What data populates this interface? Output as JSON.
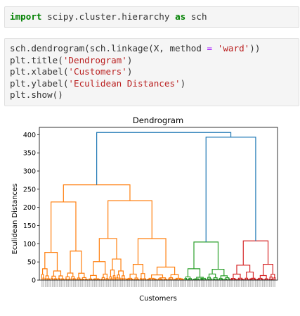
{
  "cells": {
    "import": {
      "kw_import": "import",
      "module": " scipy.cluster.hierarchy ",
      "kw_as": "as",
      "alias": " sch"
    },
    "code": [
      {
        "pre": "sch.dendrogram(sch.linkage(X, method ",
        "op": "=",
        "mid": " ",
        "str": "'ward'",
        "post": "))"
      },
      {
        "pre": "plt.title(",
        "op": "",
        "mid": "",
        "str": "'Dendrogram'",
        "post": ")"
      },
      {
        "pre": "plt.xlabel(",
        "op": "",
        "mid": "",
        "str": "'Customers'",
        "post": ")"
      },
      {
        "pre": "plt.ylabel(",
        "op": "",
        "mid": "",
        "str": "'Eculidean Distances'",
        "post": ")"
      },
      {
        "pre": "plt.show()",
        "op": "",
        "mid": "",
        "str": "",
        "post": ""
      }
    ]
  },
  "chart_data": {
    "type": "dendrogram",
    "title": "Dendrogram",
    "xlabel": "Customers",
    "ylabel": "Eculidean Distances",
    "ylim": [
      0,
      420
    ],
    "yticks": [
      0,
      50,
      100,
      150,
      200,
      250,
      300,
      350,
      400
    ],
    "grid": false,
    "colors": {
      "orange": "#ff7f0e",
      "green": "#2ca02c",
      "red": "#d62728",
      "blue": "#1f77b4"
    },
    "clusters": [
      {
        "color": "orange",
        "leaf_range": [
          0,
          122
        ],
        "top_height": 262
      },
      {
        "color": "green",
        "leaf_range": [
          122,
          161
        ],
        "top_height": 113
      },
      {
        "color": "red",
        "leaf_range": [
          161,
          200
        ],
        "top_height": 115
      }
    ],
    "root_height": 406,
    "second_merge_height": 393
  }
}
